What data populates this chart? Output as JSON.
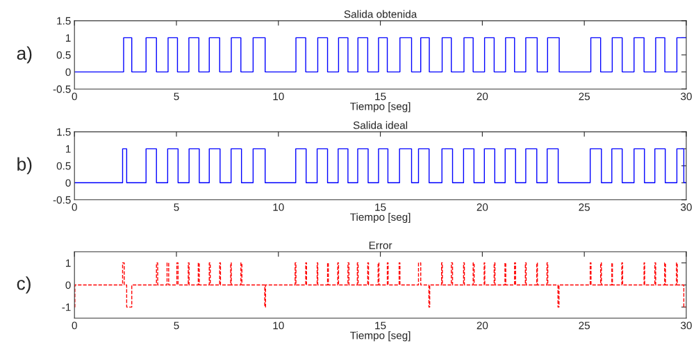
{
  "chart_data": [
    {
      "type": "step",
      "title": "Salida obtenida",
      "xlabel": "Tiempo [seg]",
      "annotations": [
        "a)"
      ],
      "xlim": [
        0,
        30
      ],
      "xticks": [
        0,
        5,
        10,
        15,
        20,
        25,
        30
      ],
      "ylim": [
        -0.5,
        1.5
      ],
      "yticks": [
        -0.5,
        0,
        0.5,
        1,
        1.5
      ],
      "grid": false,
      "legend": false,
      "line_style": "solid",
      "series": [
        {
          "color": "#0000ff",
          "x": [
            0,
            2.41,
            2.81,
            3.51,
            4.02,
            4.59,
            5.05,
            5.61,
            6.1,
            6.61,
            7.12,
            7.69,
            8.16,
            8.76,
            9.35,
            10.86,
            11.34,
            11.93,
            12.41,
            12.95,
            13.41,
            13.9,
            14.38,
            14.91,
            15.34,
            15.96,
            16.53,
            16.98,
            17.4,
            18.03,
            18.48,
            19.1,
            19.55,
            20.11,
            20.58,
            21.14,
            21.58,
            22.13,
            22.69,
            23.2,
            23.77,
            25.32,
            25.8,
            26.37,
            26.86,
            27.44,
            27.93,
            28.5,
            28.95,
            29.54,
            30
          ],
          "values": [
            0,
            1,
            0,
            1,
            0,
            1,
            0,
            1,
            0,
            1,
            0,
            1,
            0,
            1,
            0,
            1,
            0,
            1,
            0,
            1,
            0,
            1,
            0,
            1,
            0,
            1,
            0,
            1,
            0,
            1,
            0,
            1,
            0,
            1,
            0,
            1,
            0,
            1,
            0,
            1,
            0,
            1,
            0,
            1,
            0,
            1,
            0,
            1,
            0,
            1,
            1
          ]
        }
      ]
    },
    {
      "type": "step",
      "title": "Salida ideal",
      "xlabel": "Tiempo [seg]",
      "annotations": [
        "b)"
      ],
      "xlim": [
        0,
        30
      ],
      "xticks": [
        0,
        5,
        10,
        15,
        20,
        25,
        30
      ],
      "ylim": [
        -0.5,
        1.5
      ],
      "yticks": [
        -0.5,
        0,
        0.5,
        1,
        1.5
      ],
      "grid": false,
      "legend": false,
      "line_style": "solid",
      "series": [
        {
          "color": "#0000ff",
          "x": [
            0,
            2.36,
            2.56,
            3.51,
            4.02,
            4.57,
            5.08,
            5.62,
            6.12,
            6.61,
            7.14,
            7.68,
            8.19,
            8.76,
            9.35,
            10.85,
            11.36,
            11.9,
            12.41,
            12.93,
            13.41,
            13.89,
            14.4,
            14.91,
            15.37,
            15.94,
            16.53,
            16.87,
            17.39,
            18.02,
            18.54,
            19.08,
            19.59,
            20.1,
            20.61,
            21.12,
            21.63,
            22.13,
            22.67,
            23.18,
            23.72,
            25.29,
            25.84,
            26.35,
            26.86,
            27.44,
            27.95,
            28.46,
            28.97,
            29.54,
            29.88,
            30
          ],
          "values": [
            0,
            1,
            0,
            1,
            0,
            1,
            0,
            1,
            0,
            1,
            0,
            1,
            0,
            1,
            0,
            1,
            0,
            1,
            0,
            1,
            0,
            1,
            0,
            1,
            0,
            1,
            0,
            1,
            0,
            1,
            0,
            1,
            0,
            1,
            0,
            1,
            0,
            1,
            0,
            1,
            0,
            1,
            0,
            1,
            0,
            1,
            0,
            1,
            0,
            1,
            0,
            0
          ]
        }
      ]
    },
    {
      "type": "step",
      "title": "Error",
      "xlabel": "Tiempo [seg]",
      "annotations": [
        "c)"
      ],
      "xlim": [
        0,
        30
      ],
      "xticks": [
        0,
        5,
        10,
        15,
        20,
        25,
        30
      ],
      "ylim": [
        -1.5,
        1.5
      ],
      "yticks": [
        -1,
        0,
        1
      ],
      "grid": false,
      "legend": false,
      "line_style": "dashed",
      "series": [
        {
          "color": "#ff0000",
          "x": [
            0,
            0.02,
            2.36,
            2.44,
            2.56,
            2.81,
            4.02,
            4.08,
            4.54,
            4.62,
            5.02,
            5.08,
            5.58,
            5.62,
            6.07,
            6.12,
            6.61,
            6.66,
            7.12,
            7.16,
            7.66,
            7.69,
            8.16,
            8.21,
            9.33,
            9.37,
            10.82,
            10.86,
            11.34,
            11.38,
            11.9,
            11.93,
            12.41,
            12.45,
            12.91,
            12.95,
            13.41,
            13.46,
            13.87,
            13.91,
            14.38,
            14.42,
            14.89,
            14.93,
            15.34,
            15.38,
            15.92,
            15.96,
            16.87,
            16.98,
            17.38,
            17.42,
            18.0,
            18.04,
            18.48,
            18.54,
            19.08,
            19.12,
            19.55,
            19.6,
            20.09,
            20.12,
            20.58,
            20.62,
            21.11,
            21.15,
            21.58,
            21.63,
            22.11,
            22.15,
            22.67,
            22.7,
            23.17,
            23.21,
            23.71,
            23.76,
            25.29,
            25.33,
            25.8,
            25.84,
            26.35,
            26.38,
            26.84,
            26.88,
            27.93,
            27.96,
            28.46,
            28.5,
            28.94,
            28.98,
            29.52,
            29.56,
            29.88,
            30
          ],
          "values": [
            -1,
            0,
            1,
            0,
            -1,
            0,
            1,
            0,
            1,
            0,
            1,
            0,
            1,
            0,
            1,
            0,
            1,
            0,
            1,
            0,
            1,
            0,
            1,
            0,
            -1,
            0,
            1,
            0,
            1,
            0,
            1,
            0,
            1,
            0,
            1,
            0,
            1,
            0,
            1,
            0,
            1,
            0,
            1,
            0,
            1,
            0,
            1,
            0,
            1,
            0,
            -1,
            0,
            1,
            0,
            1,
            0,
            1,
            0,
            1,
            0,
            1,
            0,
            1,
            0,
            1,
            0,
            1,
            0,
            1,
            0,
            1,
            0,
            1,
            0,
            -1,
            0,
            1,
            0,
            1,
            0,
            1,
            0,
            1,
            0,
            1,
            0,
            1,
            0,
            1,
            0,
            1,
            0,
            -1,
            -1
          ]
        }
      ]
    }
  ]
}
